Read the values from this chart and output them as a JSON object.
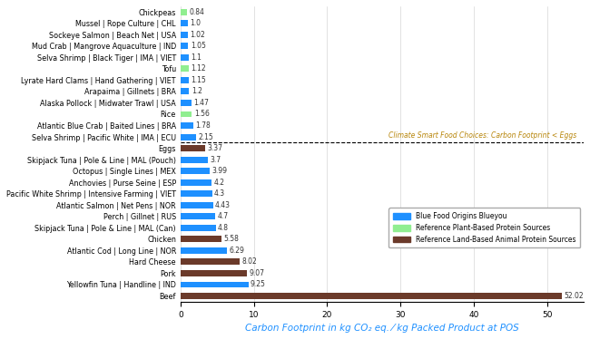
{
  "categories": [
    "Chickpeas",
    "Mussel | Rope Culture | CHL",
    "Sockeye Salmon | Beach Net | USA",
    "Mud Crab | Mangrove Aquaculture | IND",
    "Selva Shrimp | Black Tiger | IMA | VIET",
    "Tofu",
    "Lyrate Hard Clams | Hand Gathering | VIET",
    "Arapaima | Gillnets | BRA",
    "Alaska Pollock | Midwater Trawl | USA",
    "Rice",
    "Atlantic Blue Crab | Baited Lines | BRA",
    "Selva Shrimp | Pacific White | IMA | ECU",
    "Eggs",
    "Skipjack Tuna | Pole & Line | MAL (Pouch)",
    "Octopus | Single Lines | MEX",
    "Anchovies | Purse Seine | ESP",
    "Pacific White Shrimp | Intensive Farming | VIET",
    "Atlantic Salmon | Net Pens | NOR",
    "Perch | Gillnet | RUS",
    "Skipjack Tuna | Pole & Line | MAL (Can)",
    "Chicken",
    "Atlantic Cod | Long Line | NOR",
    "Hard Cheese",
    "Pork",
    "Yellowfin Tuna | Handline | IND",
    "Beef"
  ],
  "values": [
    0.84,
    1.0,
    1.02,
    1.05,
    1.1,
    1.12,
    1.15,
    1.2,
    1.47,
    1.56,
    1.78,
    2.15,
    3.37,
    3.7,
    3.99,
    4.2,
    4.3,
    4.43,
    4.7,
    4.8,
    5.58,
    6.29,
    8.02,
    9.07,
    9.25,
    52.02
  ],
  "colors": [
    "#90EE90",
    "#1E90FF",
    "#1E90FF",
    "#1E90FF",
    "#1E90FF",
    "#90EE90",
    "#1E90FF",
    "#1E90FF",
    "#1E90FF",
    "#90EE90",
    "#1E90FF",
    "#1E90FF",
    "#6B3A2A",
    "#1E90FF",
    "#1E90FF",
    "#1E90FF",
    "#1E90FF",
    "#1E90FF",
    "#1E90FF",
    "#1E90FF",
    "#6B3A2A",
    "#1E90FF",
    "#6B3A2A",
    "#6B3A2A",
    "#1E90FF",
    "#6B3A2A"
  ],
  "dashed_line_idx": 12,
  "climate_smart_text": "Climate Smart Food Choices: Carbon Footprint < Eggs",
  "xlabel": "Carbon Footprint in kg CO₂ eq. ⁄ kg Packed Product at POS",
  "xlim": [
    0,
    55
  ],
  "xticks": [
    0,
    10,
    20,
    30,
    40,
    50
  ],
  "legend_items": [
    {
      "label": "Blue Food Origins Blueyou",
      "color": "#1E90FF"
    },
    {
      "label": "Reference Plant-Based Protein Sources",
      "color": "#90EE90"
    },
    {
      "label": "Reference Land-Based Animal Protein Sources",
      "color": "#6B3A2A"
    }
  ],
  "background_color": "#FFFFFF",
  "bar_height": 0.55,
  "value_fontsize": 5.5,
  "label_fontsize": 5.8
}
